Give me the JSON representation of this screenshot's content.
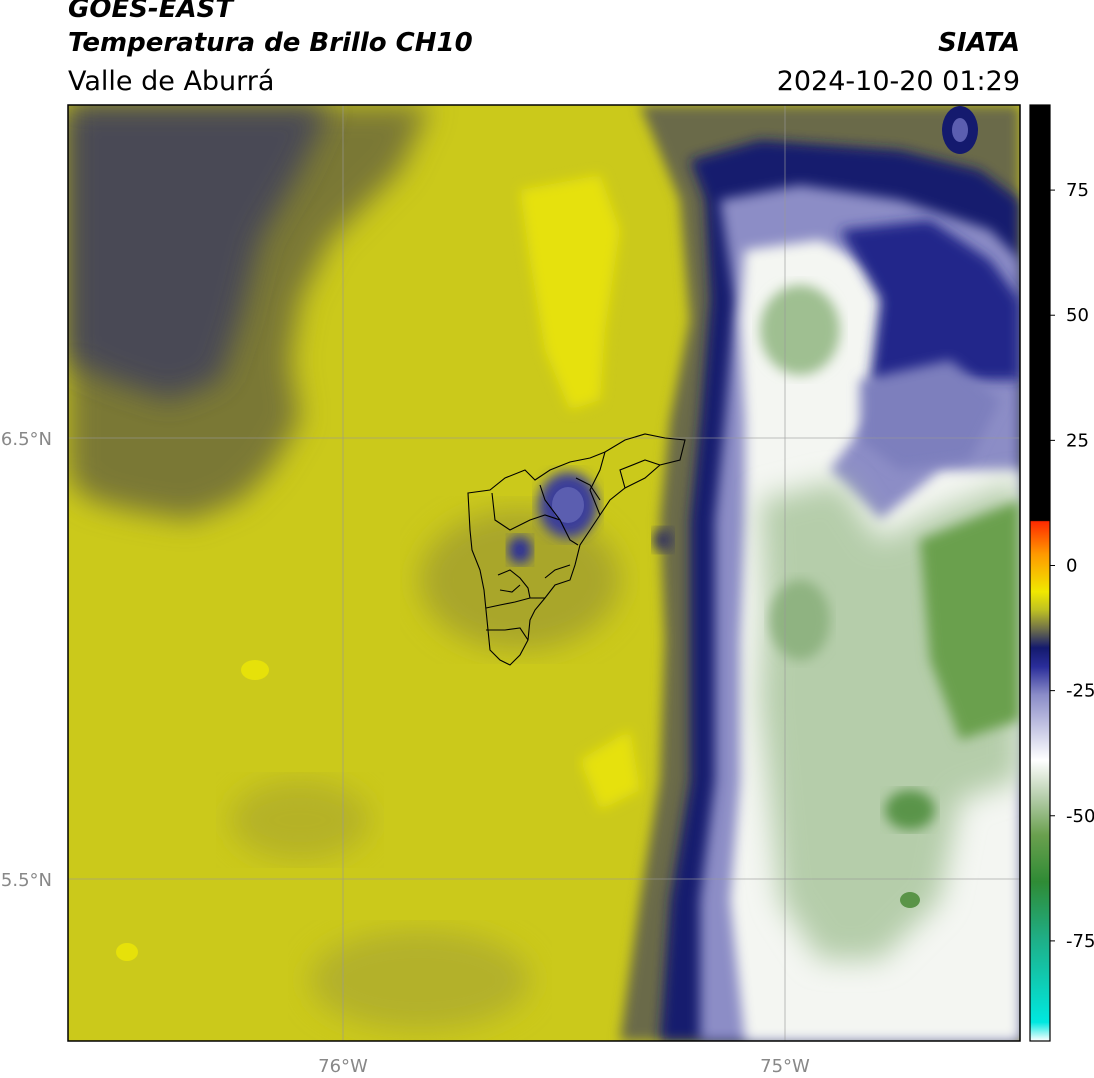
{
  "header": {
    "satellite": "GOES-EAST",
    "product": "Temperatura de Brillo CH10",
    "region": "Valle de Aburrá",
    "organization": "SIATA",
    "datetime": "2024-10-20 01:29"
  },
  "map": {
    "lat_ticks": [
      {
        "value": 6.5,
        "label": "6.5°N"
      },
      {
        "value": 5.5,
        "label": "5.5°N"
      }
    ],
    "lon_ticks": [
      {
        "value": -76,
        "label": "76°W"
      },
      {
        "value": -75,
        "label": "75°W"
      }
    ],
    "extent": {
      "lon_min": -76.62,
      "lon_max": -74.47,
      "lat_min": 5.14,
      "lat_max": 7.25
    }
  },
  "colorbar": {
    "range": [
      -95,
      92
    ],
    "ticks": [
      {
        "value": 75,
        "label": "75"
      },
      {
        "value": 50,
        "label": "50"
      },
      {
        "value": 25,
        "label": "25"
      },
      {
        "value": 0,
        "label": "0"
      },
      {
        "value": -25,
        "label": "-25"
      },
      {
        "value": -50,
        "label": "-50"
      },
      {
        "value": -75,
        "label": "-75"
      }
    ],
    "colors": [
      "#ffffff",
      "#00e8e0",
      "#1fae85",
      "#2f8b35",
      "#6aa04e",
      "#b5cdaa",
      "#ffffff",
      "#2a2d9a",
      "#141a6e",
      "#bdbf23",
      "#f0e800",
      "#ff9a00",
      "#ff2a00",
      "#000000"
    ]
  }
}
